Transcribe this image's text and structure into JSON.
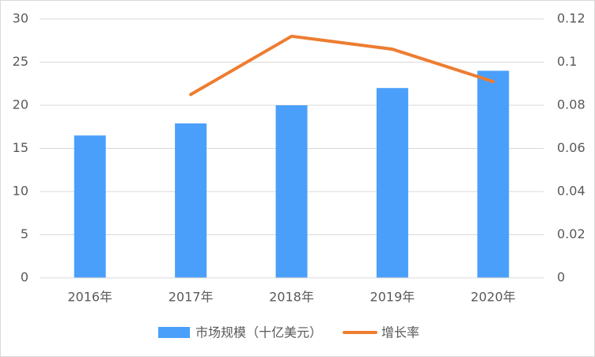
{
  "chart_data": {
    "type": "bar",
    "categories": [
      "2016年",
      "2017年",
      "2018年",
      "2019年",
      "2020年"
    ],
    "series": [
      {
        "name": "市场规模（十亿美元）",
        "type": "bar",
        "color": "#4a9ffa",
        "values": [
          16.5,
          17.9,
          20.0,
          22.0,
          24.0
        ]
      },
      {
        "name": "增长率",
        "type": "line",
        "axis": "y2",
        "color": "#ed7d31",
        "values": [
          null,
          0.085,
          0.112,
          0.106,
          0.091
        ]
      }
    ],
    "ylim": [
      0,
      30
    ],
    "yticks": [
      0,
      5,
      10,
      15,
      20,
      25,
      30
    ],
    "y2lim": [
      0,
      0.12
    ],
    "y2ticks": [
      0,
      0.02,
      0.04,
      0.06,
      0.08,
      0.1,
      0.12
    ],
    "grid": true,
    "legend": "bottom"
  }
}
